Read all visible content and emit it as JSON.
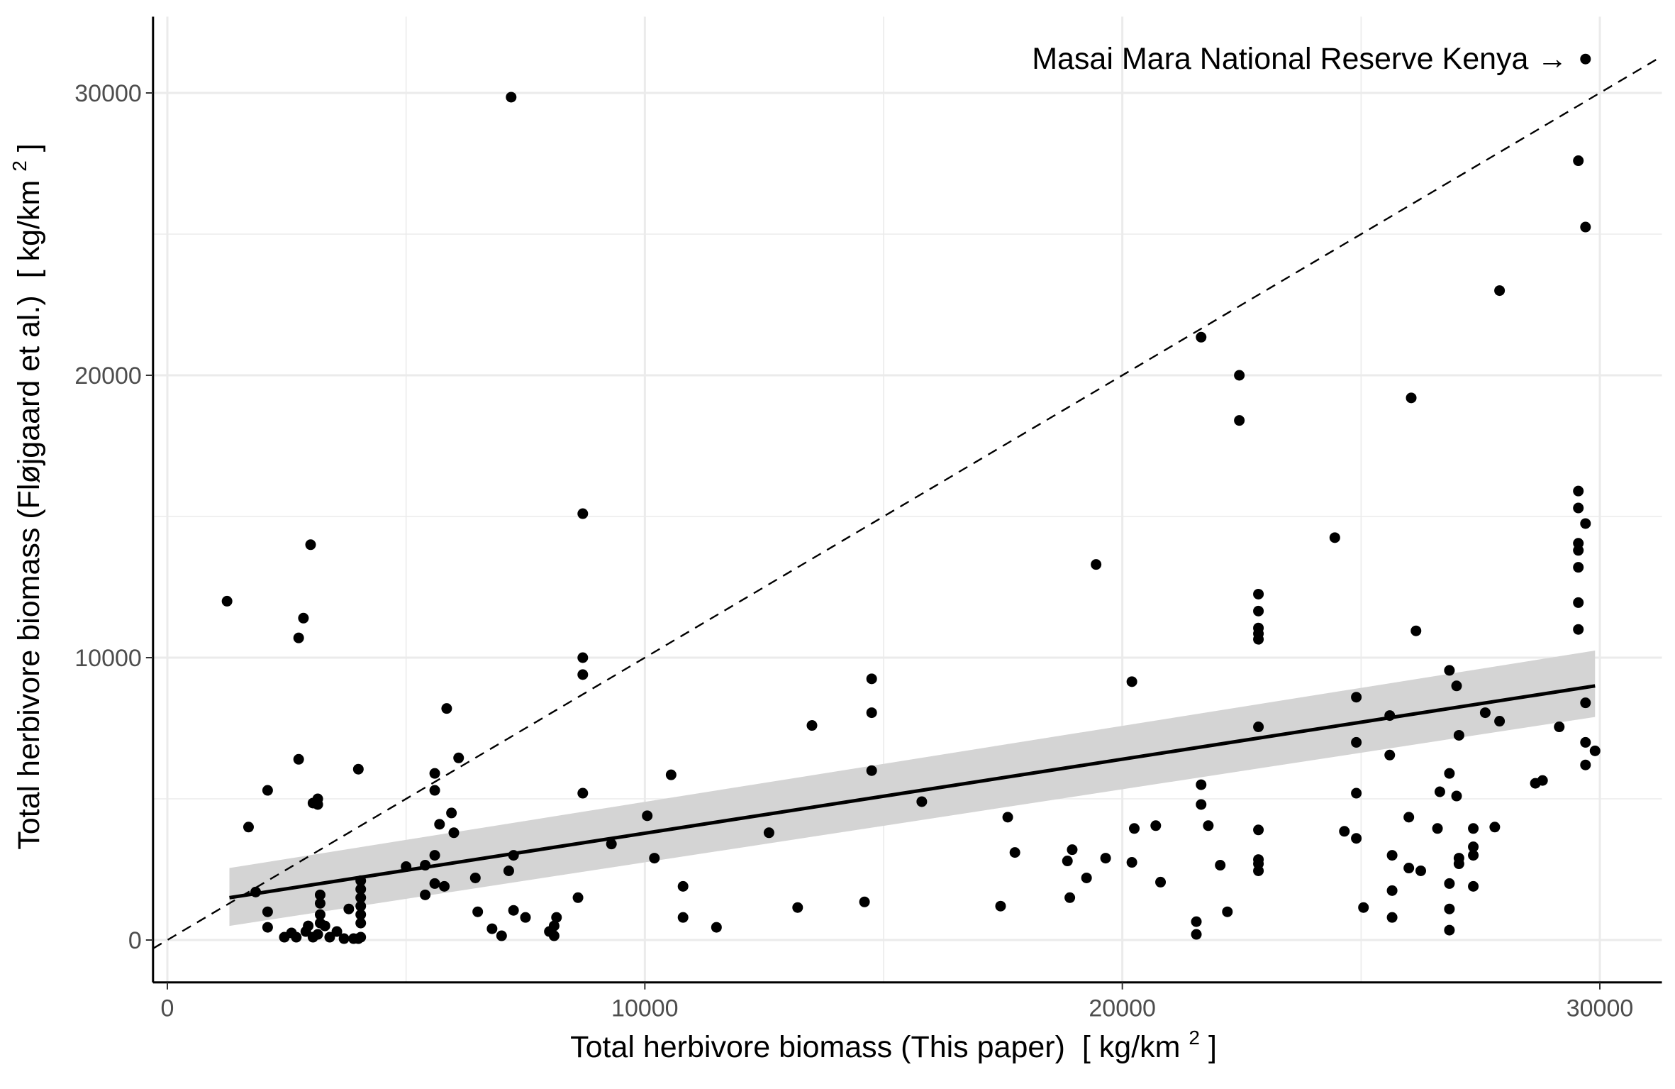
{
  "chart_data": {
    "type": "scatter",
    "xlabel": "Total herbivore biomass (This paper) [ kg/km² ]",
    "xlabel_parts": {
      "main": "Total herbivore biomass (This paper)",
      "unit_open": "[ kg/km",
      "unit_sup": "2",
      "unit_close": " ]"
    },
    "ylabel": "Total herbivore biomass (Fløjgaard et al.) [ kg/km² ]",
    "ylabel_parts": {
      "main": "Total herbivore biomass (Fløjgaard et al.)",
      "unit_open": "[ kg/km",
      "unit_sup": "2",
      "unit_close": " ]"
    },
    "xlim": [
      -300,
      31300
    ],
    "ylim": [
      -1500,
      32700
    ],
    "xticks": [
      0,
      10000,
      20000,
      30000
    ],
    "yticks": [
      0,
      10000,
      20000,
      30000
    ],
    "xtick_labels": [
      "0",
      "10000",
      "20000",
      "30000"
    ],
    "ytick_labels": [
      "0",
      "10000",
      "20000",
      "30000"
    ],
    "grid": true,
    "legend": "none",
    "annotation": {
      "text": "Masai Mara National Reserve Kenya →",
      "x": 29650,
      "y": 31200
    },
    "reference_line": {
      "style": "dashed",
      "slope": 1,
      "intercept": 0
    },
    "regression": {
      "x": [
        1300,
        29900
      ],
      "y": [
        1500,
        9000
      ],
      "ci_lower": [
        500,
        7900
      ],
      "ci_upper": [
        2550,
        10250
      ]
    },
    "colors": {
      "points": "#000000",
      "band": "#d4d4d4",
      "grid": "#ebebeb",
      "line": "#000000"
    },
    "series": [
      {
        "points": [
          [
            1250,
            12000
          ],
          [
            1700,
            4000
          ],
          [
            1850,
            1700
          ],
          [
            2100,
            5300
          ],
          [
            2100,
            1000
          ],
          [
            2100,
            450
          ],
          [
            2450,
            100
          ],
          [
            2600,
            250
          ],
          [
            2700,
            100
          ],
          [
            2750,
            6400
          ],
          [
            2750,
            10700
          ],
          [
            2850,
            11400
          ],
          [
            2900,
            300
          ],
          [
            2950,
            500
          ],
          [
            3000,
            14000
          ],
          [
            3050,
            4850
          ],
          [
            3050,
            100
          ],
          [
            3150,
            5000
          ],
          [
            3150,
            4800
          ],
          [
            3200,
            1600
          ],
          [
            3200,
            1300
          ],
          [
            3200,
            900
          ],
          [
            3200,
            600
          ],
          [
            3150,
            200
          ],
          [
            3300,
            500
          ],
          [
            3400,
            100
          ],
          [
            3550,
            300
          ],
          [
            3700,
            50
          ],
          [
            3800,
            1100
          ],
          [
            3900,
            50
          ],
          [
            4000,
            50
          ],
          [
            4000,
            6050
          ],
          [
            4050,
            2100
          ],
          [
            4050,
            1800
          ],
          [
            4050,
            1500
          ],
          [
            4050,
            1200
          ],
          [
            4050,
            900
          ],
          [
            4050,
            600
          ],
          [
            4050,
            100
          ],
          [
            5000,
            2600
          ],
          [
            5400,
            2650
          ],
          [
            5400,
            1600
          ],
          [
            5600,
            5900
          ],
          [
            5600,
            5300
          ],
          [
            5600,
            2000
          ],
          [
            5600,
            3000
          ],
          [
            5700,
            4100
          ],
          [
            5800,
            1900
          ],
          [
            5850,
            8200
          ],
          [
            5950,
            4500
          ],
          [
            6000,
            3800
          ],
          [
            6100,
            6450
          ],
          [
            6450,
            2200
          ],
          [
            6500,
            1000
          ],
          [
            6800,
            400
          ],
          [
            7000,
            150
          ],
          [
            7150,
            2450
          ],
          [
            7200,
            29850
          ],
          [
            7250,
            3000
          ],
          [
            7250,
            1050
          ],
          [
            7500,
            800
          ],
          [
            8000,
            300
          ],
          [
            8100,
            150
          ],
          [
            8100,
            500
          ],
          [
            8150,
            800
          ],
          [
            8600,
            1500
          ],
          [
            8700,
            15100
          ],
          [
            8700,
            10000
          ],
          [
            8700,
            9400
          ],
          [
            8700,
            5200
          ],
          [
            9300,
            3400
          ],
          [
            10050,
            4400
          ],
          [
            10200,
            2900
          ],
          [
            10550,
            5850
          ],
          [
            10800,
            800
          ],
          [
            10800,
            1900
          ],
          [
            11500,
            450
          ],
          [
            12600,
            3800
          ],
          [
            13200,
            1150
          ],
          [
            13500,
            7600
          ],
          [
            14600,
            1350
          ],
          [
            14750,
            9250
          ],
          [
            14750,
            8050
          ],
          [
            14750,
            6000
          ],
          [
            15800,
            4900
          ],
          [
            17450,
            1200
          ],
          [
            17600,
            4350
          ],
          [
            17750,
            3100
          ],
          [
            18850,
            2800
          ],
          [
            18900,
            1500
          ],
          [
            18950,
            3200
          ],
          [
            19250,
            2200
          ],
          [
            19450,
            13300
          ],
          [
            19650,
            2900
          ],
          [
            20200,
            9150
          ],
          [
            20200,
            2750
          ],
          [
            20250,
            3950
          ],
          [
            20700,
            4050
          ],
          [
            20800,
            2050
          ],
          [
            21550,
            650
          ],
          [
            21550,
            200
          ],
          [
            21650,
            21350
          ],
          [
            21650,
            5500
          ],
          [
            21650,
            4800
          ],
          [
            21800,
            4050
          ],
          [
            22050,
            2650
          ],
          [
            22200,
            1000
          ],
          [
            22450,
            20000
          ],
          [
            22450,
            18400
          ],
          [
            22850,
            12250
          ],
          [
            22850,
            11650
          ],
          [
            22850,
            11050
          ],
          [
            22850,
            10850
          ],
          [
            22850,
            10650
          ],
          [
            22850,
            7550
          ],
          [
            22850,
            3900
          ],
          [
            22850,
            2850
          ],
          [
            22850,
            2700
          ],
          [
            22850,
            2450
          ],
          [
            24450,
            14250
          ],
          [
            24650,
            3850
          ],
          [
            24900,
            8600
          ],
          [
            24900,
            7000
          ],
          [
            24900,
            5200
          ],
          [
            24900,
            3600
          ],
          [
            25050,
            1150
          ],
          [
            25600,
            7950
          ],
          [
            25600,
            6550
          ],
          [
            25650,
            3000
          ],
          [
            25650,
            1750
          ],
          [
            25650,
            800
          ],
          [
            26000,
            4350
          ],
          [
            26000,
            2550
          ],
          [
            26050,
            19200
          ],
          [
            26150,
            10950
          ],
          [
            26250,
            2450
          ],
          [
            26600,
            3950
          ],
          [
            26650,
            5250
          ],
          [
            26850,
            9550
          ],
          [
            26850,
            5900
          ],
          [
            26850,
            2000
          ],
          [
            26850,
            1100
          ],
          [
            26850,
            350
          ],
          [
            27000,
            9000
          ],
          [
            27000,
            5100
          ],
          [
            27050,
            7250
          ],
          [
            27050,
            2900
          ],
          [
            27050,
            2700
          ],
          [
            27350,
            3950
          ],
          [
            27350,
            3300
          ],
          [
            27350,
            3000
          ],
          [
            27350,
            1900
          ],
          [
            27600,
            8050
          ],
          [
            27800,
            4000
          ],
          [
            27900,
            23000
          ],
          [
            27900,
            7750
          ],
          [
            28650,
            5550
          ],
          [
            28800,
            5650
          ],
          [
            29150,
            7550
          ],
          [
            29550,
            27600
          ],
          [
            29550,
            15900
          ],
          [
            29550,
            15300
          ],
          [
            29550,
            14050
          ],
          [
            29550,
            13800
          ],
          [
            29550,
            13200
          ],
          [
            29550,
            11950
          ],
          [
            29550,
            11000
          ],
          [
            29700,
            31200
          ],
          [
            29700,
            25250
          ],
          [
            29700,
            14750
          ],
          [
            29700,
            8400
          ],
          [
            29700,
            7000
          ],
          [
            29700,
            6200
          ],
          [
            29900,
            6700
          ]
        ]
      }
    ]
  }
}
